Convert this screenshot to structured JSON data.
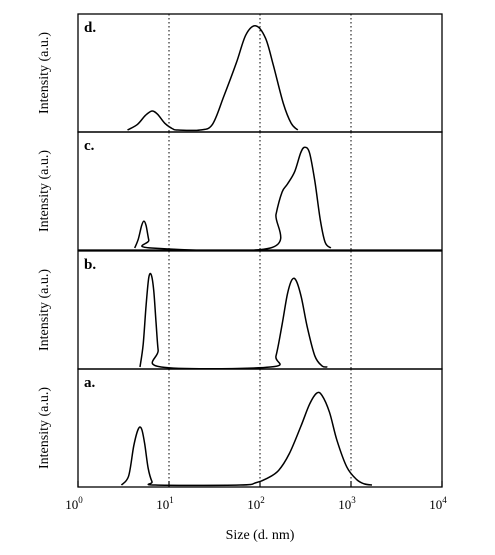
{
  "chart_data": {
    "type": "line",
    "x_scale": "log",
    "xlim": [
      1,
      10000
    ],
    "xlabel": "Size (d. nm)",
    "x_ticks": [
      {
        "base": "10",
        "exp": "0",
        "value": 1
      },
      {
        "base": "10",
        "exp": "1",
        "value": 10
      },
      {
        "base": "10",
        "exp": "2",
        "value": 100
      },
      {
        "base": "10",
        "exp": "3",
        "value": 1000
      },
      {
        "base": "10",
        "exp": "4",
        "value": 10000
      }
    ],
    "reference_lines_x": [
      10,
      100,
      1000
    ],
    "panels": [
      {
        "label": "d.",
        "ylabel": "Intensity (a.u.)",
        "ylim": [
          0,
          1
        ],
        "series": [
          {
            "x": [
              3.5,
              4.5,
              5.5,
              6.5,
              7.5,
              9,
              11,
              12.5,
              22,
              30,
              40,
              55,
              70,
              90,
              115,
              140,
              180,
              220,
              260
            ],
            "y": [
              0,
              0.05,
              0.13,
              0.17,
              0.14,
              0.06,
              0.01,
              0,
              0,
              0.05,
              0.3,
              0.6,
              0.85,
              0.93,
              0.82,
              0.58,
              0.24,
              0.06,
              0
            ]
          }
        ]
      },
      {
        "label": "c.",
        "ylabel": "Intensity (a.u.)",
        "ylim": [
          0,
          1
        ],
        "series": [
          {
            "x": [
              4.2,
              4.6,
              5.0,
              5.3,
              5.6,
              6.0,
              6.4,
              130,
              150,
              175,
              200,
              240,
              280,
              310,
              350,
              400,
              460,
              520,
              600
            ],
            "y": [
              0,
              0.08,
              0.2,
              0.24,
              0.2,
              0.07,
              0,
              0,
              0.3,
              0.5,
              0.57,
              0.68,
              0.85,
              0.9,
              0.85,
              0.6,
              0.25,
              0.05,
              0
            ]
          }
        ]
      },
      {
        "label": "b.",
        "ylabel": "Intensity (a.u.)",
        "ylim": [
          0,
          1
        ],
        "series": [
          {
            "x": [
              4.8,
              5.2,
              5.6,
              6.0,
              6.4,
              6.8,
              7.2,
              7.6,
              8.2,
              130,
              150,
              175,
              200,
              225,
              250,
              285,
              330,
              400,
              480,
              550
            ],
            "y": [
              0,
              0.2,
              0.55,
              0.8,
              0.82,
              0.68,
              0.4,
              0.15,
              0,
              0,
              0.1,
              0.38,
              0.65,
              0.78,
              0.77,
              0.62,
              0.36,
              0.1,
              0.01,
              0
            ]
          }
        ]
      },
      {
        "label": "a.",
        "ylabel": "Intensity (a.u.)",
        "ylim": [
          0,
          1
        ],
        "series": [
          {
            "x": [
              3.0,
              3.6,
              4.1,
              4.6,
              5.0,
              5.4,
              5.9,
              6.5,
              7.1,
              60,
              90,
              120,
              160,
              210,
              280,
              350,
              420,
              480,
              580,
              700,
              900,
              1150,
              1400,
              1700
            ],
            "y": [
              0,
              0.08,
              0.35,
              0.5,
              0.5,
              0.37,
              0.15,
              0.03,
              0,
              0,
              0.02,
              0.06,
              0.13,
              0.28,
              0.52,
              0.72,
              0.82,
              0.8,
              0.65,
              0.4,
              0.16,
              0.05,
              0.01,
              0
            ]
          }
        ]
      }
    ]
  }
}
